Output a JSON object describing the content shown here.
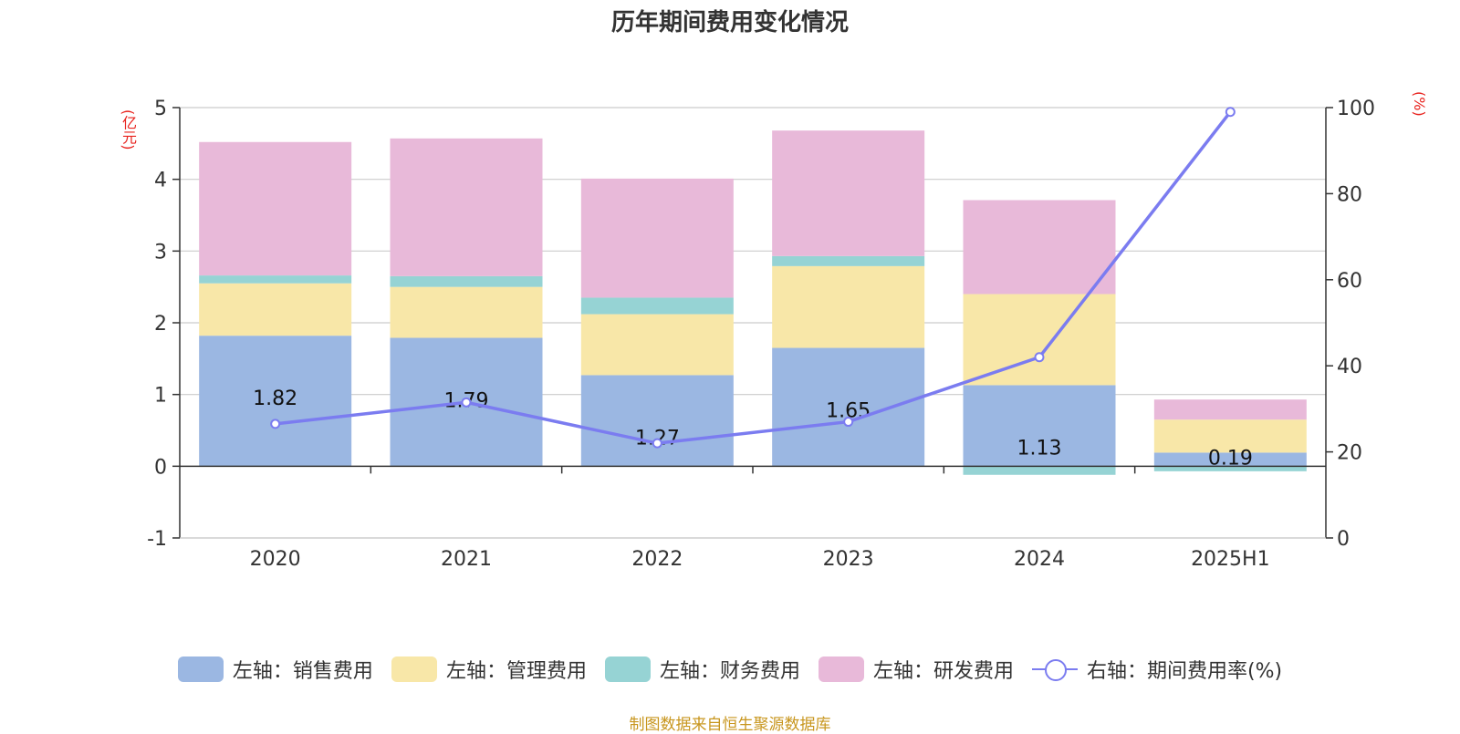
{
  "chart_data": {
    "type": "bar",
    "title": "历年期间费用变化情况",
    "categories": [
      "2020",
      "2021",
      "2022",
      "2023",
      "2024",
      "2025H1"
    ],
    "left_axis": {
      "unit": "(亿元)",
      "ylim": [
        -1,
        5
      ],
      "ticks": [
        "5",
        "4",
        "3",
        "2",
        "1",
        "0",
        "-1"
      ]
    },
    "right_axis": {
      "unit": "(%)",
      "ylim": [
        0,
        100
      ],
      "ticks": [
        "100",
        "80",
        "60",
        "40",
        "20",
        "0"
      ]
    },
    "series": [
      {
        "name": "左轴：销售费用",
        "type": "bar",
        "axis": "left",
        "color": "#9bb7e2",
        "values": [
          1.82,
          1.79,
          1.27,
          1.65,
          1.13,
          0.19
        ]
      },
      {
        "name": "左轴：管理费用",
        "type": "bar",
        "axis": "left",
        "color": "#f8e7a8",
        "values": [
          0.73,
          0.71,
          0.85,
          1.14,
          1.27,
          0.46
        ]
      },
      {
        "name": "左轴：财务费用",
        "type": "bar",
        "axis": "left",
        "color": "#96d3d4",
        "values": [
          0.11,
          0.15,
          0.23,
          0.14,
          -0.12,
          -0.07
        ]
      },
      {
        "name": "左轴：研发费用",
        "type": "bar",
        "axis": "left",
        "color": "#e8b9d9",
        "values": [
          1.86,
          1.92,
          1.66,
          1.75,
          1.31,
          0.28
        ]
      },
      {
        "name": "右轴：期间费用率(%)",
        "type": "line",
        "axis": "right",
        "color": "#7b7cf0",
        "values": [
          26.5,
          31.5,
          22.0,
          27.0,
          42.0,
          99.0
        ]
      }
    ],
    "data_labels": [
      "1.82",
      "1.79",
      "1.27",
      "1.65",
      "1.13",
      "0.19"
    ],
    "legend": "bottom",
    "grid": true
  },
  "legend": [
    {
      "label": "左轴：销售费用",
      "color": "#9bb7e2"
    },
    {
      "label": "左轴：管理费用",
      "color": "#f8e7a8"
    },
    {
      "label": "左轴：财务费用",
      "color": "#96d3d4"
    },
    {
      "label": "左轴：研发费用",
      "color": "#e8b9d9"
    },
    {
      "label": "右轴：期间费用率(%)",
      "color": "#7b7cf0"
    }
  ],
  "source": "制图数据来自恒生聚源数据库"
}
